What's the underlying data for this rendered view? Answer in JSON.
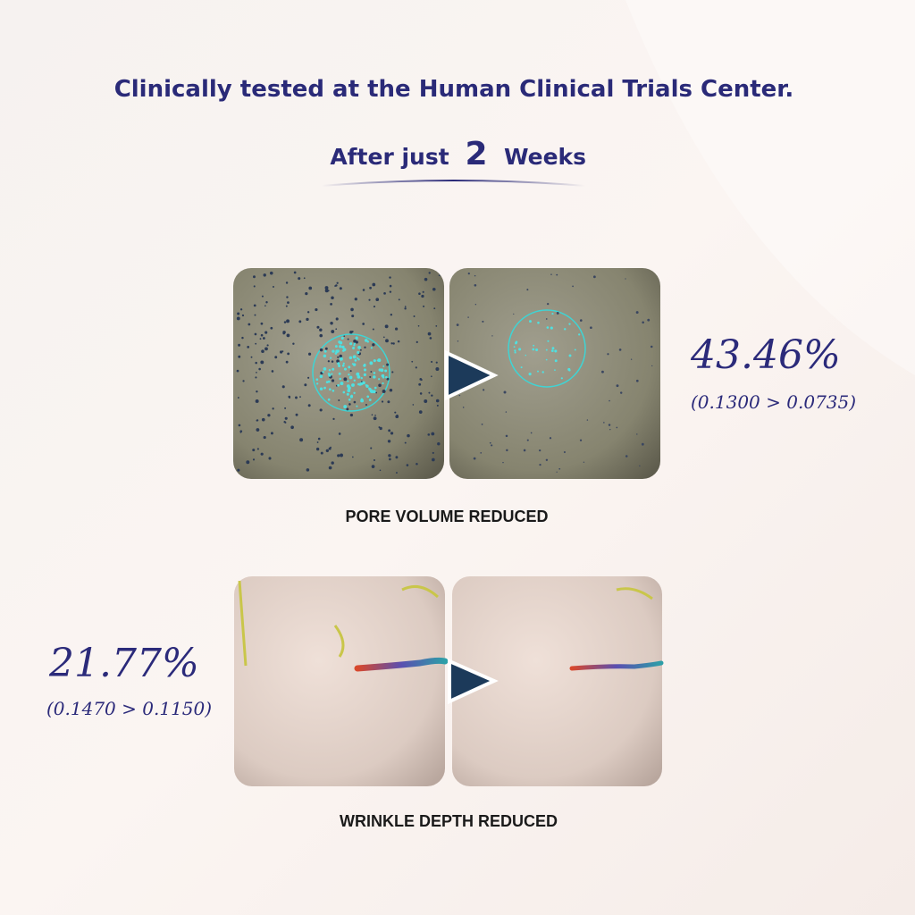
{
  "header": {
    "title": "Clinically tested at the Human Clinical Trials Center.",
    "subtitle_prefix": "After just",
    "subtitle_number": "2",
    "subtitle_suffix": "Weeks"
  },
  "results": [
    {
      "percent": "43.46%",
      "detail": "(0.1300 > 0.0735)",
      "caption": "PORE VOLUME REDUCED"
    },
    {
      "percent": "21.77%",
      "detail": "(0.1470 > 0.1150)",
      "caption": "WRINKLE DEPTH REDUCED"
    }
  ]
}
